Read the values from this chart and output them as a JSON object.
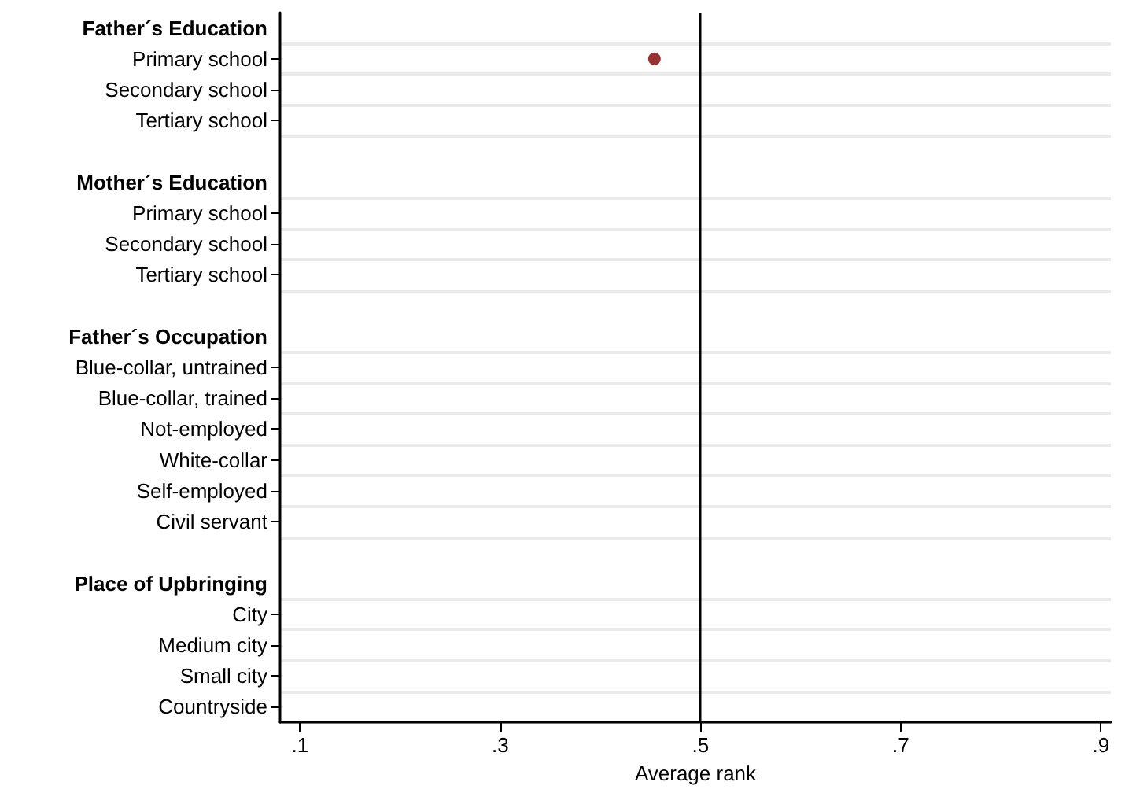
{
  "chart_data": {
    "type": "scatter",
    "orientation": "horizontal",
    "xlabel": "Average rank",
    "categories": [
      "Father´s Education",
      "Primary school",
      "Secondary school",
      "Tertiary school",
      null,
      "Mother´s Education",
      "Primary school",
      "Secondary school",
      "Tertiary school",
      null,
      "Father´s Occupation",
      "Blue-collar, untrained",
      "Blue-collar, trained",
      "Not-employed",
      "White-collar",
      "Self-employed",
      "Civil servant",
      null,
      "Place of Upbringing",
      "City",
      "Medium city",
      "Small city",
      "Countryside"
    ],
    "series": [
      {
        "color": "#800000",
        "values": [
          null,
          0.454,
          null,
          null,
          null,
          null,
          null,
          null,
          null,
          null,
          null,
          null,
          null,
          null,
          null,
          null,
          null,
          null,
          null,
          null,
          null,
          null,
          null
        ]
      }
    ],
    "xlim": [
      0.08,
      0.91
    ],
    "xticks": [
      {
        "value": 0.1,
        "label": ".1"
      },
      {
        "value": 0.3,
        "label": ".3"
      },
      {
        "value": 0.5,
        "label": ".5"
      },
      {
        "value": 0.7,
        "label": ".7"
      },
      {
        "value": 0.9,
        "label": ".9"
      }
    ],
    "ref_lines": [
      {
        "axis": "x",
        "value": 0.5,
        "color": "#000000"
      }
    ],
    "grid": "y",
    "marker": "circle"
  }
}
